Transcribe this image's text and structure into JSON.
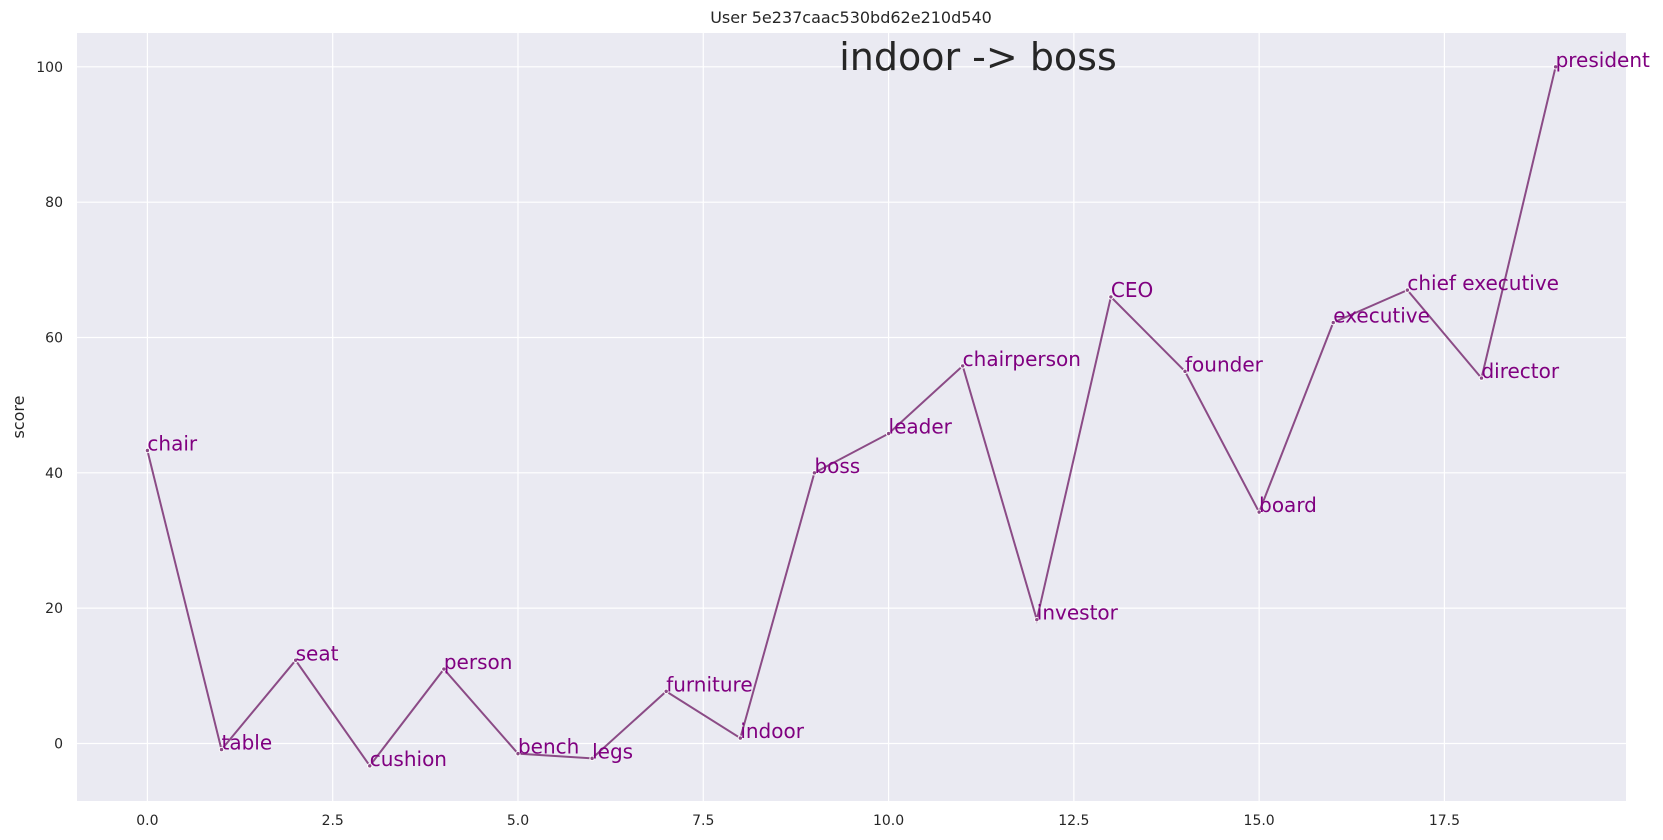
{
  "chart_data": {
    "type": "line",
    "title": "User 5e237caac530bd62e210d540",
    "annotation": "indoor -> boss",
    "xlabel": "",
    "ylabel": "score",
    "xlim": [
      -0.95,
      19.95
    ],
    "ylim": [
      -8.5,
      105
    ],
    "xticks": [
      0.0,
      2.5,
      5.0,
      7.5,
      10.0,
      12.5,
      15.0,
      17.5
    ],
    "xtick_labels": [
      "0.0",
      "2.5",
      "5.0",
      "7.5",
      "10.0",
      "12.5",
      "15.0",
      "17.5"
    ],
    "yticks": [
      0,
      20,
      40,
      60,
      80,
      100
    ],
    "ytick_labels": [
      "0",
      "20",
      "40",
      "60",
      "80",
      "100"
    ],
    "grid": true,
    "colors": {
      "background": "#eaeaf2",
      "grid": "#ffffff",
      "line": "#8b4b86",
      "labels": "#800080"
    },
    "series": [
      {
        "x": [
          0,
          1,
          2,
          3,
          4,
          5,
          6,
          7,
          8,
          9,
          10,
          11,
          12,
          13,
          14,
          15,
          16,
          17,
          18,
          19
        ],
        "values": [
          43.3,
          -0.9,
          12.3,
          -3.3,
          11.0,
          -1.5,
          -2.2,
          7.7,
          0.8,
          40.0,
          45.8,
          55.8,
          18.3,
          66.0,
          55.0,
          34.2,
          62.2,
          67.0,
          54.0,
          100.0
        ],
        "labels": [
          "chair",
          "table",
          "seat",
          "cushion",
          "person",
          "bench",
          "legs",
          "furniture",
          "indoor",
          "boss",
          "leader",
          "chairperson",
          "investor",
          "CEO",
          "founder",
          "board",
          "executive",
          "chief executive",
          "director",
          "president"
        ]
      }
    ]
  }
}
